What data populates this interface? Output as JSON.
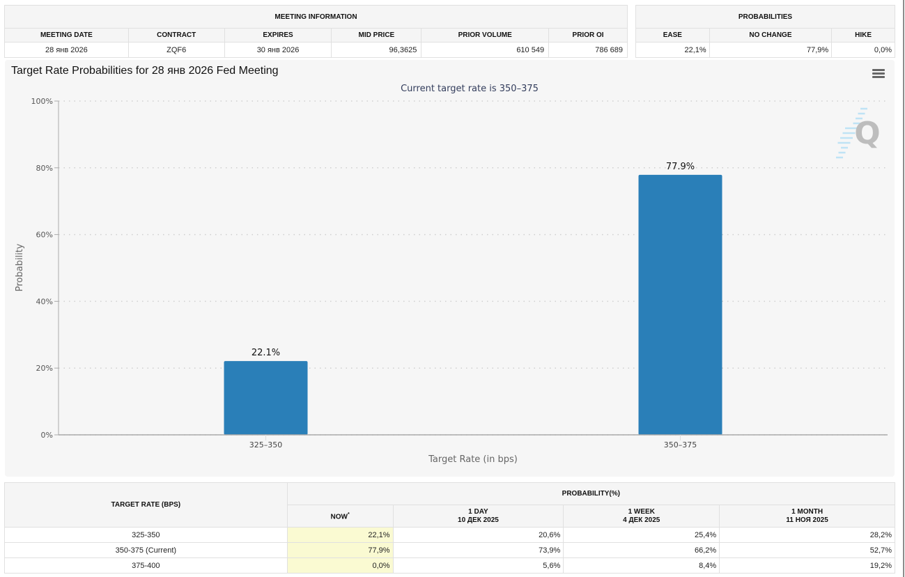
{
  "meeting_info": {
    "group_header": "MEETING INFORMATION",
    "columns": [
      "MEETING DATE",
      "CONTRACT",
      "EXPIRES",
      "MID PRICE",
      "PRIOR VOLUME",
      "PRIOR OI"
    ],
    "values": [
      "28 янв 2026",
      "ZQF6",
      "30 янв 2026",
      "96,3625",
      "610 549",
      "786 689"
    ]
  },
  "probabilities": {
    "group_header": "PROBABILITIES",
    "columns": [
      "EASE",
      "NO CHANGE",
      "HIKE"
    ],
    "values": [
      "22,1%",
      "77,9%",
      "0,0%"
    ]
  },
  "chart": {
    "menu_icon": "hamburger-menu-icon",
    "watermark_icon": "q-logo-icon",
    "watermark_letter": "Q"
  },
  "chart_data": {
    "type": "bar",
    "title": "Target Rate Probabilities for 28 янв 2026 Fed Meeting",
    "subtitle": "Current target rate is 350–375",
    "categories": [
      "325–350",
      "350–375"
    ],
    "values": [
      22.1,
      77.9
    ],
    "data_labels": [
      "22.1%",
      "77.9%"
    ],
    "xlabel": "Target Rate (in bps)",
    "ylabel": "Probability",
    "ylim": [
      0,
      100
    ],
    "yticks": [
      0,
      20,
      40,
      60,
      80,
      100
    ],
    "ytick_labels": [
      "0%",
      "20%",
      "40%",
      "60%",
      "80%",
      "100%"
    ],
    "grid": true,
    "bar_color": "#2a7fb8"
  },
  "rates_table": {
    "row_header": "TARGET RATE (BPS)",
    "group_header": "PROBABILITY(%)",
    "columns": [
      {
        "line1": "NOW",
        "marker": "*",
        "line2": ""
      },
      {
        "line1": "1 DAY",
        "line2": "10 ДЕК 2025"
      },
      {
        "line1": "1 WEEK",
        "line2": "4 ДЕК 2025"
      },
      {
        "line1": "1 MONTH",
        "line2": "11 НОЯ 2025"
      }
    ],
    "rows": [
      {
        "rate": "325-350",
        "values": [
          "22,1%",
          "20,6%",
          "25,4%",
          "28,2%"
        ]
      },
      {
        "rate": "350-375 (Current)",
        "values": [
          "77,9%",
          "73,9%",
          "66,2%",
          "52,7%"
        ]
      },
      {
        "rate": "375-400",
        "values": [
          "0,0%",
          "5,6%",
          "8,4%",
          "19,2%"
        ]
      }
    ]
  }
}
